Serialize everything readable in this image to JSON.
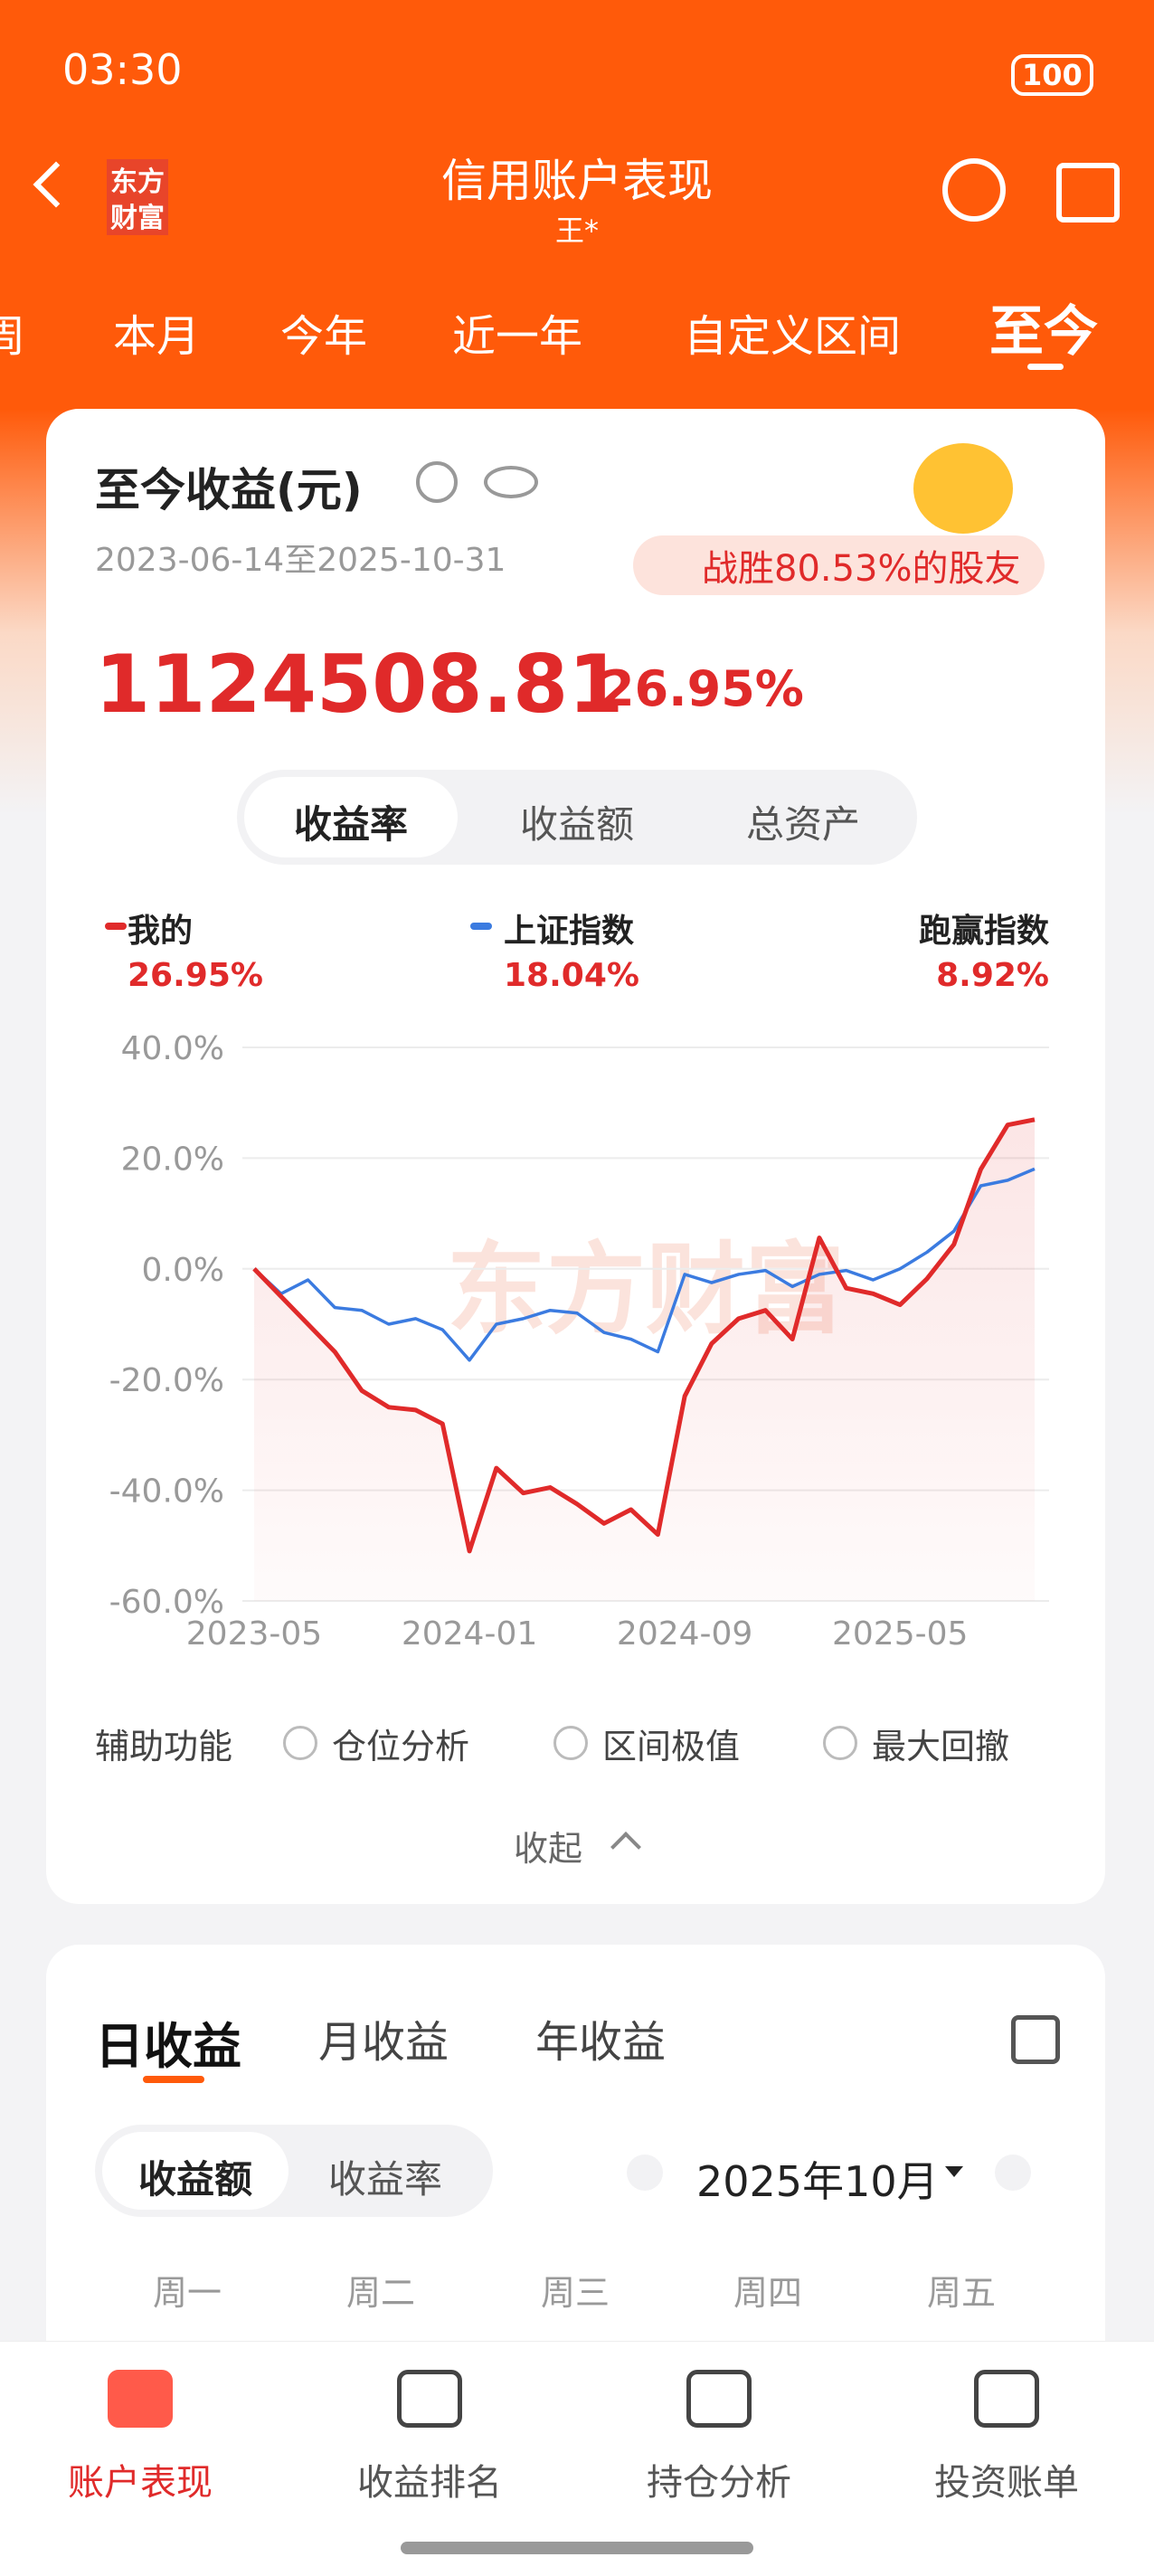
{
  "status": {
    "time": "03:30",
    "battery": "100"
  },
  "header": {
    "logo": [
      "东方",
      "财富"
    ],
    "title": "信用账户表现",
    "subtitle": "王*"
  },
  "period_tabs": [
    "周",
    "本月",
    "今年",
    "近一年",
    "自定义区间",
    "至今"
  ],
  "summary": {
    "title": "至今收益(元)",
    "date_range": "2023-06-14至2025-10-31",
    "badge": "战胜80.53%的股友",
    "amount": "1124508.81",
    "rate": "26.95%"
  },
  "metric_tabs": [
    "收益率",
    "收益额",
    "总资产"
  ],
  "chart_data": {
    "type": "line",
    "watermark": "东方财富",
    "x": [
      "2023-05",
      "2023-06",
      "2023-07",
      "2023-08",
      "2023-09",
      "2023-10",
      "2023-11",
      "2023-12",
      "2024-01",
      "2024-02",
      "2024-03",
      "2024-04",
      "2024-05",
      "2024-06",
      "2024-07",
      "2024-08",
      "2024-09",
      "2024-10",
      "2024-11",
      "2024-12",
      "2025-01",
      "2025-02",
      "2025-03",
      "2025-04",
      "2025-05",
      "2025-06",
      "2025-07",
      "2025-08",
      "2025-09",
      "2025-10"
    ],
    "series": [
      {
        "name": "我的",
        "latest": "26.95%",
        "color": "#e02a2a",
        "values": [
          0,
          -5,
          -10,
          -15,
          -22,
          -25,
          -25.5,
          -28,
          -51,
          -36,
          -40.5,
          -39.5,
          -42.5,
          -46,
          -43.5,
          -48,
          -23,
          -13.5,
          -9,
          -7.5,
          -12.7,
          5.6,
          -3.5,
          -4.5,
          -6.5,
          -1.8,
          4.4,
          18,
          26,
          26.95
        ]
      },
      {
        "name": "上证指数",
        "latest": "18.04%",
        "color": "#3b7be0",
        "values": [
          0,
          -4.5,
          -2,
          -7,
          -7.5,
          -10,
          -9,
          -11,
          -16.5,
          -10,
          -9,
          -7.5,
          -8,
          -11.5,
          -12.7,
          -15,
          -1,
          -2.5,
          -1,
          -0.3,
          -3.2,
          -1,
          -0.3,
          -2,
          0,
          3,
          6.8,
          15,
          16,
          18.04
        ]
      }
    ],
    "excess": {
      "name": "跑赢指数",
      "value": "8.92%"
    },
    "ylim": [
      -60,
      40
    ],
    "yticks": [
      {
        "value": 40,
        "label": "40.0%"
      },
      {
        "value": 20,
        "label": "20.0%"
      },
      {
        "value": 0,
        "label": "0.0%"
      },
      {
        "value": -20,
        "label": "-20.0%"
      },
      {
        "value": -40,
        "label": "-40.0%"
      },
      {
        "value": -60,
        "label": "-60.0%"
      }
    ],
    "xticks": [
      "2023-05",
      "2024-01",
      "2024-09",
      "2025-05"
    ],
    "grid": true
  },
  "aux": {
    "label": "辅助功能",
    "options": [
      "仓位分析",
      "区间极值",
      "最大回撤"
    ],
    "collapse": "收起"
  },
  "daily": {
    "tabs": [
      "日收益",
      "月收益",
      "年收益"
    ],
    "toggle": [
      "收益额",
      "收益率"
    ],
    "month": "2025年10月",
    "weekdays": [
      "周一",
      "周二",
      "周三",
      "周四",
      "周五"
    ]
  },
  "nav": [
    "账户表现",
    "收益排名",
    "持仓分析",
    "投资账单"
  ]
}
